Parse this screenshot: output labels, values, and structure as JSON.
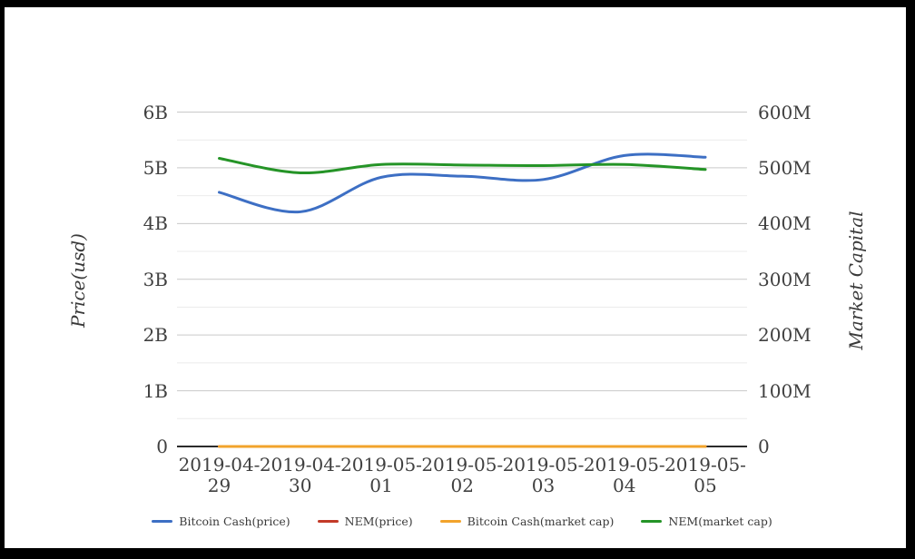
{
  "page": {
    "background": "#ffffff",
    "frame_color": "#000000"
  },
  "chart_data": {
    "type": "line",
    "title": "",
    "x": [
      "2019-04-29",
      "2019-04-30",
      "2019-05-01",
      "2019-05-02",
      "2019-05-03",
      "2019-05-04",
      "2019-05-05"
    ],
    "left_axis": {
      "title": "Price(usd)",
      "tick_labels": [
        "0",
        "1B",
        "2B",
        "3B",
        "4B",
        "5B",
        "6B"
      ],
      "min": 0,
      "max": 6,
      "unit": "B"
    },
    "right_axis": {
      "title": "Market Capital",
      "tick_labels": [
        "0",
        "100M",
        "200M",
        "300M",
        "400M",
        "500M",
        "600M"
      ],
      "min": 0,
      "max": 600,
      "unit": "M"
    },
    "grid": {
      "major_gridlines": true,
      "minor_gridlines": true,
      "major_color": "#c9c9c9",
      "minor_color": "#ebebeb",
      "baseline_color": "#2b2b2b"
    },
    "legend_position": "bottom",
    "series": [
      {
        "name": "Bitcoin Cash(price)",
        "color": "#3d6fc4",
        "axis": "left",
        "unit": "B",
        "values": [
          4.56,
          4.21,
          4.83,
          4.85,
          4.79,
          5.22,
          5.19
        ]
      },
      {
        "name": "NEM(price)",
        "color": "#c33a28",
        "axis": "left",
        "unit": "B",
        "values": [
          0,
          0,
          0,
          0,
          0,
          0,
          0
        ]
      },
      {
        "name": "Bitcoin Cash(market cap)",
        "color": "#f2a32c",
        "axis": "right",
        "unit": "M",
        "values": [
          0,
          0,
          0,
          0,
          0,
          0,
          0
        ]
      },
      {
        "name": "NEM(market cap)",
        "color": "#259427",
        "axis": "right",
        "unit": "M",
        "values": [
          517,
          491,
          506,
          505,
          504,
          506,
          497
        ]
      }
    ],
    "legend": [
      {
        "label": "Bitcoin Cash(price)",
        "color": "#3d6fc4"
      },
      {
        "label": "NEM(price)",
        "color": "#c33a28"
      },
      {
        "label": "Bitcoin Cash(market cap)",
        "color": "#f2a32c"
      },
      {
        "label": "NEM(market cap)",
        "color": "#259427"
      }
    ]
  }
}
